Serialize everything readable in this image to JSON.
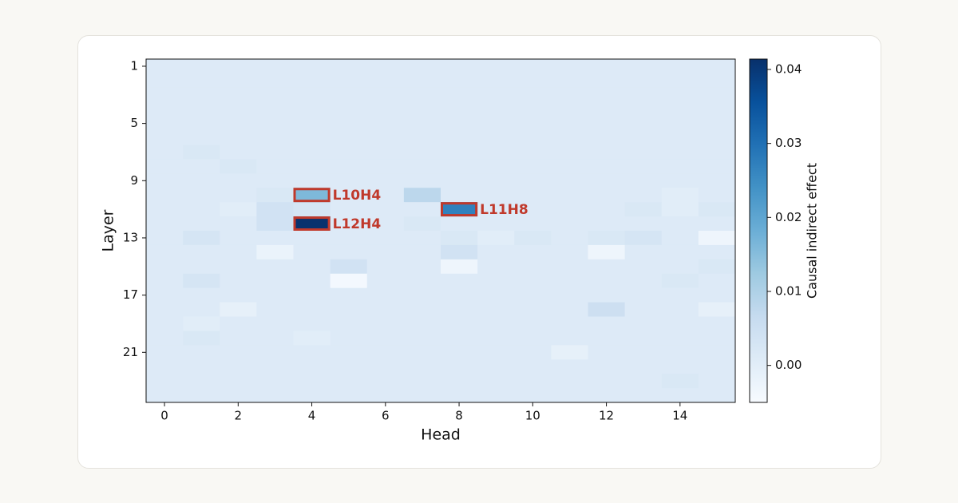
{
  "chart_data": {
    "type": "heatmap",
    "xlabel": "Head",
    "ylabel": "Layer",
    "colorbar_label": "Causal indirect effect",
    "colormap": "Blues",
    "x": [
      0,
      1,
      2,
      3,
      4,
      5,
      6,
      7,
      8,
      9,
      10,
      11,
      12,
      13,
      14,
      15
    ],
    "y": [
      1,
      2,
      3,
      4,
      5,
      6,
      7,
      8,
      9,
      10,
      11,
      12,
      13,
      14,
      15,
      16,
      17,
      18,
      19,
      20,
      21,
      22,
      23,
      24
    ],
    "xlim": [
      -0.5,
      15.5
    ],
    "ylim": [
      24.5,
      0.5
    ],
    "xticks": [
      0,
      2,
      4,
      6,
      8,
      10,
      12,
      14
    ],
    "yticks": [
      1,
      5,
      9,
      13,
      17,
      21
    ],
    "zlim": [
      -0.005,
      0.0414
    ],
    "zticks": [
      {
        "value": 0,
        "label": "0.00"
      },
      {
        "value": 0.01,
        "label": "0.01"
      },
      {
        "value": 0.02,
        "label": "0.02"
      },
      {
        "value": 0.03,
        "label": "0.03"
      },
      {
        "value": 0.04,
        "label": "0.04"
      }
    ],
    "z": [
      [
        0.001,
        0.001,
        0.001,
        0.001,
        0.001,
        0.001,
        0.001,
        0.001,
        0.001,
        0.001,
        0.001,
        0.001,
        0.001,
        0.001,
        0.001,
        0.001
      ],
      [
        0.001,
        0.001,
        0.001,
        0.001,
        0.001,
        0.001,
        0.001,
        0.001,
        0.001,
        0.001,
        0.001,
        0.001,
        0.001,
        0.001,
        0.001,
        0.001
      ],
      [
        0.001,
        0.001,
        0.001,
        0.001,
        0.001,
        0.001,
        0.001,
        0.001,
        0.001,
        0.001,
        0.001,
        0.001,
        0.001,
        0.001,
        0.001,
        0.001
      ],
      [
        0.001,
        0.001,
        0.001,
        0.001,
        0.001,
        0.001,
        0.001,
        0.001,
        0.001,
        0.001,
        0.001,
        0.001,
        0.001,
        0.001,
        0.001,
        0.001
      ],
      [
        0.001,
        0.001,
        0.001,
        0.001,
        0.001,
        0.001,
        0.001,
        0.001,
        0.001,
        0.001,
        0.001,
        0.001,
        0.001,
        0.001,
        0.001,
        0.001
      ],
      [
        0.001,
        0.001,
        0.001,
        0.001,
        0.001,
        0.001,
        0.001,
        0.001,
        0.001,
        0.001,
        0.001,
        0.001,
        0.001,
        0.001,
        0.001,
        0.001
      ],
      [
        0.001,
        0.002,
        0.001,
        0.001,
        0.001,
        0.001,
        0.001,
        0.001,
        0.001,
        0.001,
        0.001,
        0.001,
        0.001,
        0.001,
        0.001,
        0.001
      ],
      [
        0.001,
        0.001,
        0.002,
        0.001,
        0.001,
        0.001,
        0.001,
        0.001,
        0.001,
        0.001,
        0.001,
        0.001,
        0.001,
        0.001,
        0.001,
        0.001
      ],
      [
        0.001,
        0.001,
        0.001,
        0.001,
        0.001,
        0.001,
        0.001,
        0.001,
        0.001,
        0.001,
        0.001,
        0.001,
        0.001,
        0.001,
        0.001,
        0.001
      ],
      [
        0.001,
        0.001,
        0.001,
        0.002,
        0.016,
        0.001,
        0.001,
        0.008,
        0.001,
        0.001,
        0.001,
        0.001,
        0.001,
        0.001,
        0,
        0.001
      ],
      [
        0.001,
        0.001,
        0,
        0.004,
        0.003,
        0.001,
        0.001,
        0.001,
        0.027,
        0.001,
        0.001,
        0.001,
        0.001,
        0.002,
        0,
        0.002
      ],
      [
        0.001,
        0.001,
        0.001,
        0.004,
        0.041,
        0.001,
        0.001,
        0.002,
        0.001,
        0.001,
        0.001,
        0.001,
        0.001,
        0.001,
        0.001,
        0.001
      ],
      [
        0.001,
        0.003,
        0.001,
        0.001,
        0.001,
        0.001,
        0.001,
        0.001,
        0.002,
        0,
        0.002,
        0.001,
        0.002,
        0.003,
        0.001,
        -0.003
      ],
      [
        0.001,
        0.001,
        0.001,
        -0.002,
        0.001,
        0.001,
        0.001,
        0.001,
        0.004,
        0.001,
        0.001,
        0.001,
        -0.003,
        0.001,
        0.001,
        0.001
      ],
      [
        0.001,
        0.001,
        0.001,
        0.001,
        0.001,
        0.004,
        0.001,
        0.001,
        -0.003,
        0.001,
        0.001,
        0.001,
        0.001,
        0.001,
        0.001,
        0.002
      ],
      [
        0.001,
        0.003,
        0.001,
        0.001,
        0.001,
        -0.004,
        0.001,
        0.001,
        0.001,
        0.001,
        0.001,
        0.001,
        0.001,
        0.001,
        0.002,
        0.001
      ],
      [
        0.001,
        0.001,
        0.001,
        0.001,
        0.001,
        0.001,
        0.001,
        0.001,
        0.001,
        0.001,
        0.001,
        0.001,
        0.001,
        0.001,
        0.001,
        0.001
      ],
      [
        0.001,
        0.001,
        -0.001,
        0.001,
        0.001,
        0.001,
        0.001,
        0.001,
        0.001,
        0.001,
        0.001,
        0.001,
        0.005,
        0.001,
        0.001,
        -0.001
      ],
      [
        0.001,
        0,
        0.001,
        0.001,
        0.001,
        0.001,
        0.001,
        0.001,
        0.001,
        0.001,
        0.001,
        0.001,
        0.001,
        0.001,
        0.001,
        0.001
      ],
      [
        0.001,
        0.002,
        0.001,
        0.001,
        0,
        0.001,
        0.001,
        0.001,
        0.001,
        0.001,
        0.001,
        0.001,
        0.001,
        0.001,
        0.001,
        0.001
      ],
      [
        0.001,
        0.001,
        0.001,
        0.001,
        0.001,
        0.001,
        0.001,
        0.001,
        0.001,
        0.001,
        0.001,
        -0.001,
        0.001,
        0.001,
        0.001,
        0.001
      ],
      [
        0.001,
        0.001,
        0.001,
        0.001,
        0.001,
        0.001,
        0.001,
        0.001,
        0.001,
        0.001,
        0.001,
        0.001,
        0.001,
        0.001,
        0.001,
        0.001
      ],
      [
        0.001,
        0.001,
        0.001,
        0.001,
        0.001,
        0.001,
        0.001,
        0.001,
        0.001,
        0.001,
        0.001,
        0.001,
        0.001,
        0.001,
        0.002,
        0.001
      ],
      [
        0.001,
        0.001,
        0.001,
        0.001,
        0.001,
        0.001,
        0.001,
        0.001,
        0.001,
        0.001,
        0.001,
        0.001,
        0.001,
        0.001,
        0.001,
        0.001
      ]
    ],
    "annotations": [
      {
        "text": "L10H4",
        "x": 4,
        "y": 10
      },
      {
        "text": "L12H4",
        "x": 4,
        "y": 12
      },
      {
        "text": "L11H8",
        "x": 8,
        "y": 11
      }
    ],
    "annotation_color": "#c0392b"
  }
}
